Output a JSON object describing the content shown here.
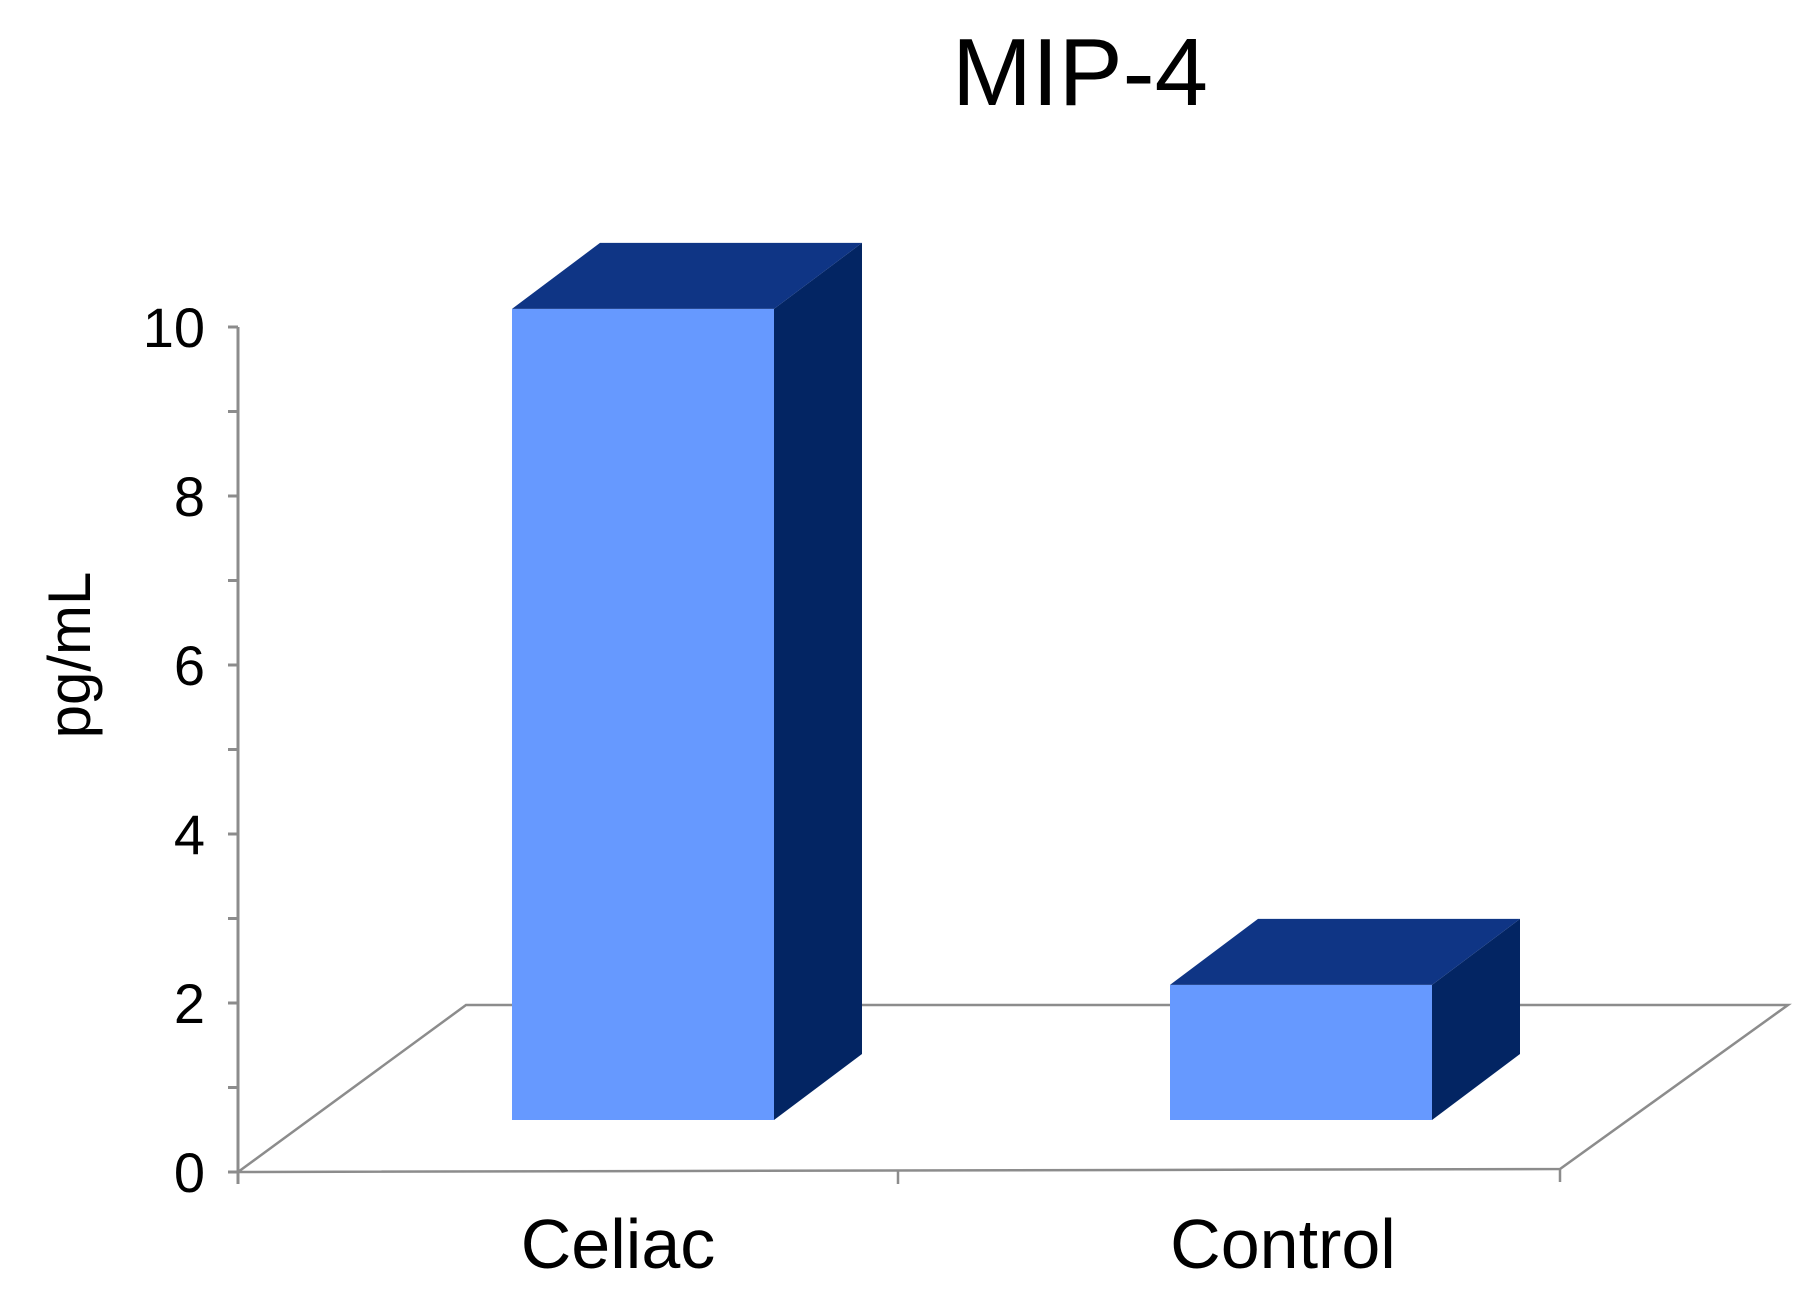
{
  "chart_data": {
    "type": "bar",
    "title": "MIP-4",
    "xlabel": "",
    "ylabel": "pg/mL",
    "categories": [
      "Celiac",
      "Control"
    ],
    "values": [
      9.8,
      1.8
    ],
    "ylim": [
      0,
      10
    ],
    "yticks": [
      "0",
      "2",
      "4",
      "6",
      "8",
      "10"
    ],
    "grid": false,
    "legend": "none",
    "three_d": true
  },
  "colors": {
    "bar_front": "#6699ff",
    "bar_top": "#0f3585",
    "bar_side": "#032563",
    "axis": "#8c8c8c"
  }
}
